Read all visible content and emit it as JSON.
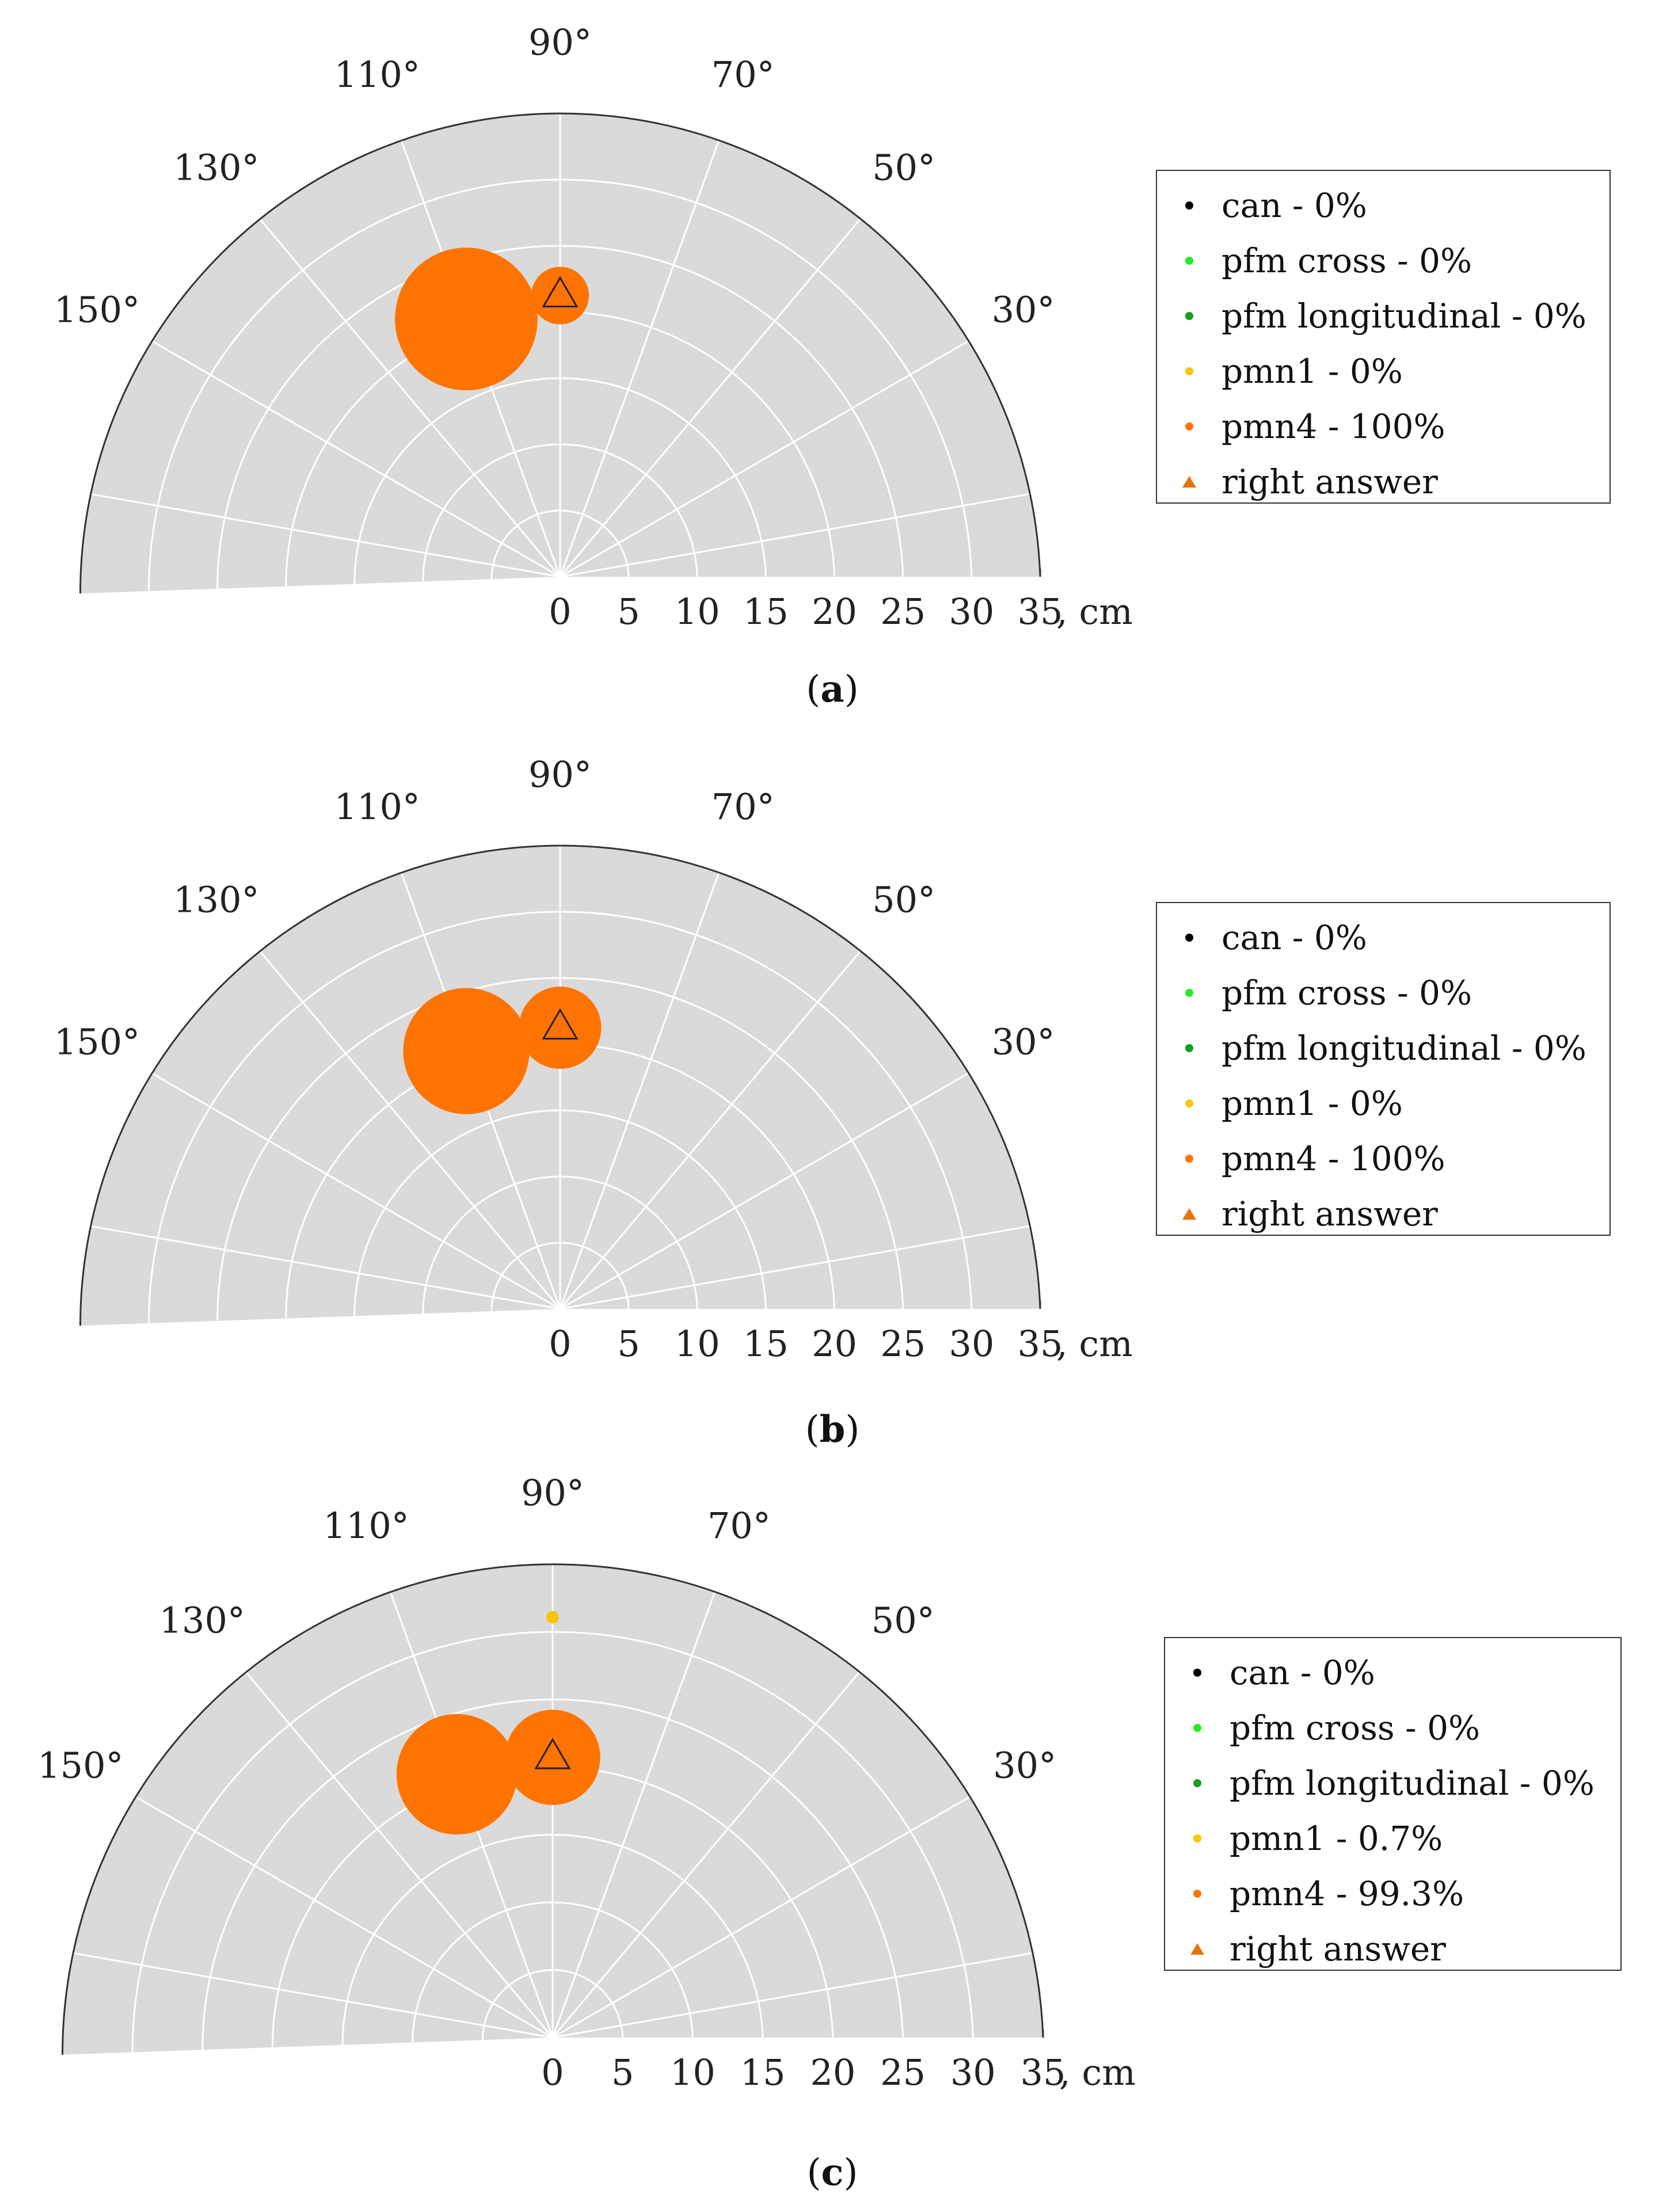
{
  "colors": {
    "background": "#dadada",
    "grid": "#ffffff",
    "can": "#000000",
    "pfm_cross": "#22ee22",
    "pfm_longitudinal": "#139e1e",
    "pmn1": "#f6c800",
    "pmn4": "#ff7400",
    "right_answer": "#e8740c"
  },
  "chart_data": [
    {
      "type": "polar-scatter",
      "caption_label": "a",
      "caption_open": "(",
      "caption_close": ")",
      "radial_unit": ", cm",
      "rlim": [
        0,
        35
      ],
      "r_ticks": [
        "0",
        "5",
        "10",
        "15",
        "20",
        "25",
        "30",
        "35"
      ],
      "angle_ticks": [
        "30°",
        "50°",
        "70°",
        "90°",
        "110°",
        "130°",
        "150°"
      ],
      "angle_range_deg": [
        0,
        180
      ],
      "legend": [
        {
          "key": "can",
          "label": "can - 0%",
          "marker": "dot"
        },
        {
          "key": "pfm_cross",
          "label": "pfm cross - 0%",
          "marker": "dot"
        },
        {
          "key": "pfm_longitudinal",
          "label": "pfm longitudinal - 0%",
          "marker": "dot"
        },
        {
          "key": "pmn1",
          "label": "pmn1 - 0%",
          "marker": "dot"
        },
        {
          "key": "pmn4",
          "label": "pmn4 - 100%",
          "marker": "dot"
        },
        {
          "key": "right_answer",
          "label": "right answer",
          "marker": "triangle"
        }
      ],
      "points": [
        {
          "series": "pmn4",
          "theta_deg": 110,
          "r_cm": 20,
          "size_cm": 5.2
        },
        {
          "series": "pmn4",
          "theta_deg": 90,
          "r_cm": 20.5,
          "size_cm": 2.1
        }
      ],
      "right_answer": {
        "theta_deg": 90,
        "r_cm": 20.5
      }
    },
    {
      "type": "polar-scatter",
      "caption_label": "b",
      "caption_open": "(",
      "caption_close": ")",
      "radial_unit": ", cm",
      "rlim": [
        0,
        35
      ],
      "r_ticks": [
        "0",
        "5",
        "10",
        "15",
        "20",
        "25",
        "30",
        "35"
      ],
      "angle_ticks": [
        "30°",
        "50°",
        "70°",
        "90°",
        "110°",
        "130°",
        "150°"
      ],
      "angle_range_deg": [
        0,
        180
      ],
      "legend": [
        {
          "key": "can",
          "label": "can - 0%",
          "marker": "dot"
        },
        {
          "key": "pfm_cross",
          "label": "pfm cross - 0%",
          "marker": "dot"
        },
        {
          "key": "pfm_longitudinal",
          "label": "pfm longitudinal - 0%",
          "marker": "dot"
        },
        {
          "key": "pmn1",
          "label": "pmn1 - 0%",
          "marker": "dot"
        },
        {
          "key": "pmn4",
          "label": "pmn4 - 100%",
          "marker": "dot"
        },
        {
          "key": "right_answer",
          "label": "right answer",
          "marker": "triangle"
        }
      ],
      "points": [
        {
          "series": "pmn4",
          "theta_deg": 110,
          "r_cm": 20,
          "size_cm": 4.6
        },
        {
          "series": "pmn4",
          "theta_deg": 90,
          "r_cm": 20.5,
          "size_cm": 3.0
        }
      ],
      "right_answer": {
        "theta_deg": 90,
        "r_cm": 20.5
      }
    },
    {
      "type": "polar-scatter",
      "caption_label": "c",
      "caption_open": "(",
      "caption_close": ")",
      "radial_unit": ", cm",
      "rlim": [
        0,
        35
      ],
      "r_ticks": [
        "0",
        "5",
        "10",
        "15",
        "20",
        "25",
        "30",
        "35"
      ],
      "angle_ticks": [
        "30°",
        "50°",
        "70°",
        "90°",
        "110°",
        "130°",
        "150°"
      ],
      "angle_range_deg": [
        0,
        180
      ],
      "legend": [
        {
          "key": "can",
          "label": "can - 0%",
          "marker": "dot"
        },
        {
          "key": "pfm_cross",
          "label": "pfm cross - 0%",
          "marker": "dot"
        },
        {
          "key": "pfm_longitudinal",
          "label": "pfm longitudinal - 0%",
          "marker": "dot"
        },
        {
          "key": "pmn1",
          "label": "pmn1 - 0.7%",
          "marker": "dot"
        },
        {
          "key": "pmn4",
          "label": "pmn4 - 99.3%",
          "marker": "dot"
        },
        {
          "key": "right_answer",
          "label": "right answer",
          "marker": "triangle"
        }
      ],
      "points": [
        {
          "series": "pmn4",
          "theta_deg": 110,
          "r_cm": 20,
          "size_cm": 4.3
        },
        {
          "series": "pmn4",
          "theta_deg": 90,
          "r_cm": 20,
          "size_cm": 3.4
        },
        {
          "series": "pmn1",
          "theta_deg": 90,
          "r_cm": 30,
          "size_cm": 0.45
        }
      ],
      "right_answer": {
        "theta_deg": 90,
        "r_cm": 20
      }
    }
  ]
}
